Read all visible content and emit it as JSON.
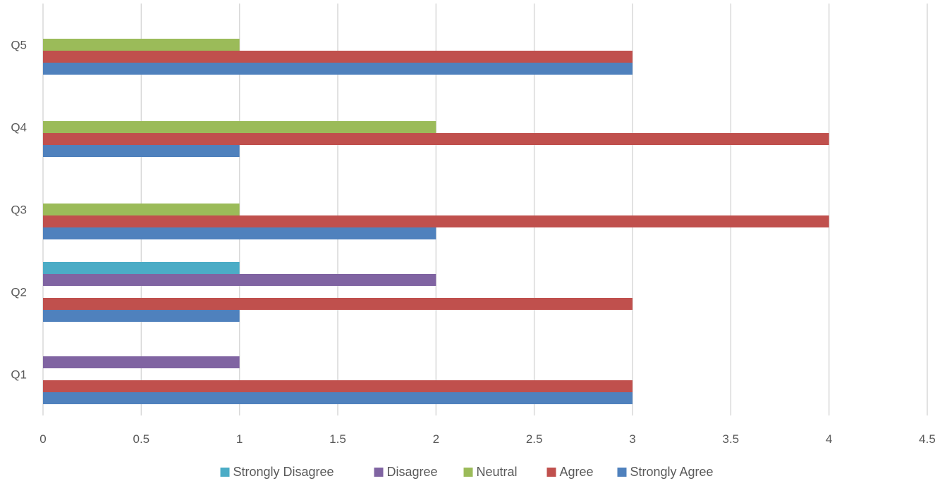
{
  "chart_data": {
    "type": "bar",
    "orientation": "horizontal",
    "categories": [
      "Q1",
      "Q2",
      "Q3",
      "Q4",
      "Q5"
    ],
    "series": [
      {
        "name": "Strongly Agree",
        "color": "#4f81bd",
        "values": [
          3,
          1,
          2,
          1,
          3
        ]
      },
      {
        "name": "Agree",
        "color": "#c0504d",
        "values": [
          3,
          3,
          4,
          4,
          3
        ]
      },
      {
        "name": "Neutral",
        "color": "#9bbb59",
        "values": [
          0,
          0,
          1,
          2,
          1
        ]
      },
      {
        "name": "Disagree",
        "color": "#8064a2",
        "values": [
          1,
          2,
          0,
          0,
          0
        ]
      },
      {
        "name": "Strongly Disagree",
        "color": "#4bacc6",
        "values": [
          0,
          1,
          0,
          0,
          0
        ]
      }
    ],
    "x_ticks": [
      "0",
      "0.5",
      "1",
      "1.5",
      "2",
      "2.5",
      "3",
      "3.5",
      "4",
      "4.5"
    ],
    "xlim": [
      0,
      4.5
    ],
    "legend_order": [
      "Strongly Disagree",
      "Disagree",
      "Neutral",
      "Agree",
      "Strongly Agree"
    ],
    "legend_position": "bottom",
    "grid": "vertical",
    "title": "",
    "xlabel": "",
    "ylabel": ""
  }
}
